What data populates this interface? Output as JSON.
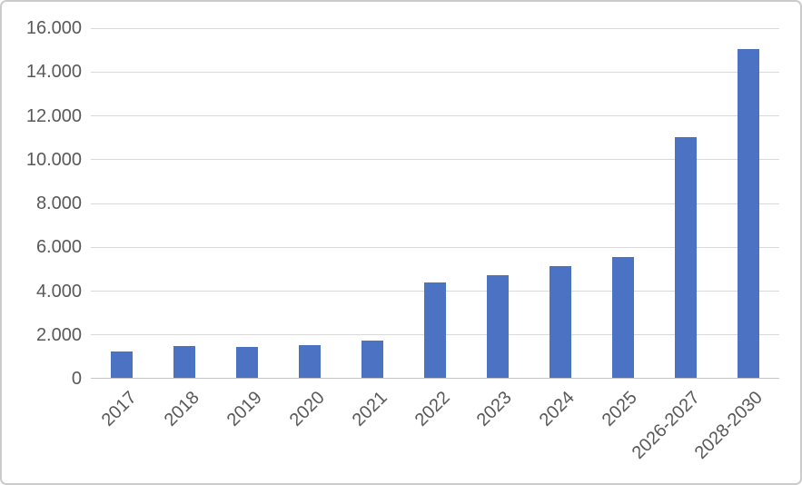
{
  "chart_data": {
    "type": "bar",
    "title": "",
    "xlabel": "",
    "ylabel": "",
    "categories": [
      "2017",
      "2018",
      "2019",
      "2020",
      "2021",
      "2022",
      "2023",
      "2024",
      "2025",
      "2026-2027",
      "2028-2030"
    ],
    "values": [
      1200,
      1450,
      1400,
      1500,
      1700,
      4350,
      4700,
      5100,
      5500,
      11000,
      15000
    ],
    "ylim": [
      0,
      16000
    ],
    "y_ticks": [
      0,
      2000,
      4000,
      6000,
      8000,
      10000,
      12000,
      14000,
      16000
    ],
    "y_tick_labels": [
      "0",
      "2.000",
      "4.000",
      "6.000",
      "8.000",
      "10.000",
      "12.000",
      "14.000",
      "16.000"
    ],
    "grid": true,
    "legend": false,
    "x_label_rotation_deg": -45
  },
  "colors": {
    "bar": "#4c72c4",
    "gridline": "#d9d9d9",
    "axis_line": "#c6c6c6",
    "tick_label": "#595959",
    "frame_border": "#cbcbcb",
    "background": "#ffffff"
  }
}
